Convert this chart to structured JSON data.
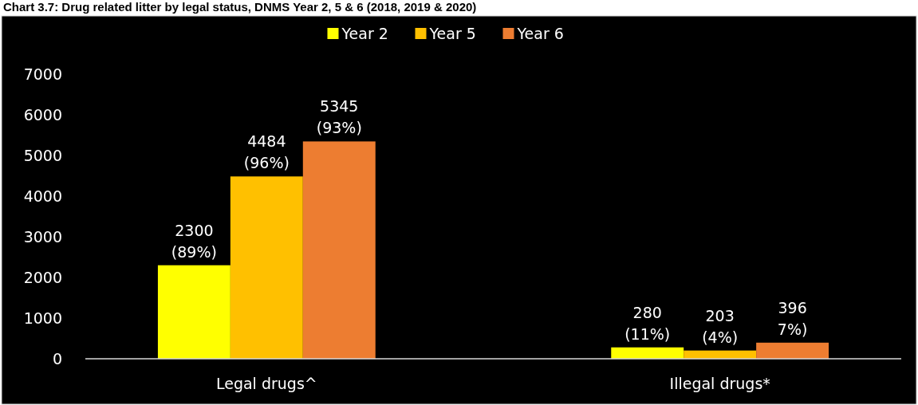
{
  "chart_data": {
    "type": "bar",
    "title": "Chart 3.7: Drug related litter by legal status, DNMS Year 2, 5 & 6 (2018, 2019 & 2020)",
    "categories": [
      "Legal drugs^",
      "Illegal drugs*"
    ],
    "series": [
      {
        "name": "Year 2",
        "color": "#ffff00",
        "values": [
          2300,
          280
        ],
        "value_labels": [
          "2300\n(89%)",
          "280\n(11%)"
        ]
      },
      {
        "name": "Year 5",
        "color": "#ffc000",
        "values": [
          4484,
          203
        ],
        "value_labels": [
          "4484\n(96%)",
          "203\n(4%)"
        ]
      },
      {
        "name": "Year 6",
        "color": "#ed7d31",
        "values": [
          5345,
          396
        ],
        "value_labels": [
          "5345\n(93%)",
          "396\n7%)"
        ]
      }
    ],
    "ylim": [
      0,
      7000
    ],
    "yticks": [
      0,
      1000,
      2000,
      3000,
      4000,
      5000,
      6000,
      7000
    ],
    "grid": false,
    "legend": "top"
  }
}
